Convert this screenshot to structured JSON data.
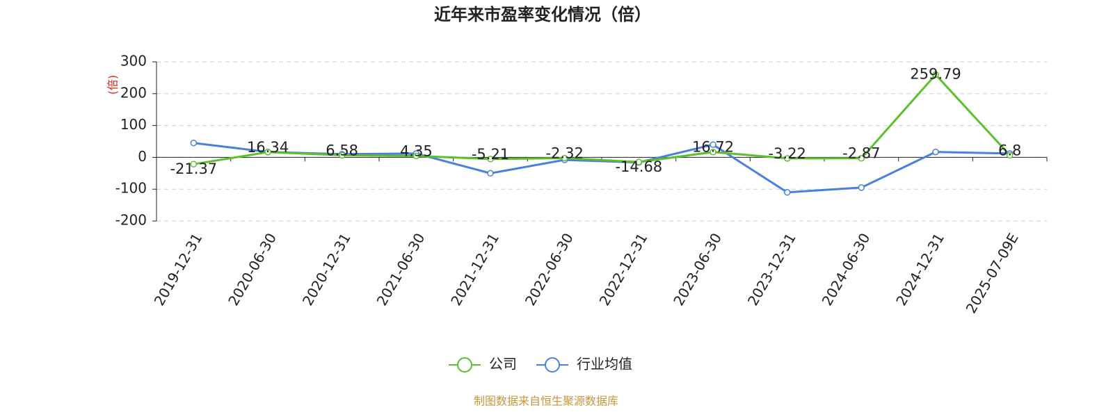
{
  "chart_data": {
    "type": "line",
    "title": "近年来市盈率变化情况（倍）",
    "y_label": "(倍)",
    "source": "制图数据来自恒生聚源数据库",
    "categories": [
      "2019-12-31",
      "2020-06-30",
      "2020-12-31",
      "2021-06-30",
      "2021-12-31",
      "2022-06-30",
      "2022-12-31",
      "2023-06-30",
      "2023-12-31",
      "2024-06-30",
      "2024-12-31",
      "2025-07-09E"
    ],
    "series": [
      {
        "name": "公司",
        "color": "#5bc02a",
        "values": [
          -21.37,
          16.34,
          6.58,
          4.35,
          -5.21,
          -2.32,
          -14.68,
          16.72,
          -3.22,
          -2.87,
          259.79,
          6.8
        ],
        "labels": true
      },
      {
        "name": "行业均值",
        "color": "#4a80dc",
        "values": [
          45,
          17,
          10,
          12,
          -50,
          -8,
          -16,
          40,
          -110,
          -95,
          17,
          12
        ],
        "labels": false
      }
    ],
    "ylim": [
      -200,
      300
    ],
    "yticks": [
      -200,
      -100,
      0,
      100,
      200,
      300
    ],
    "grid": true
  }
}
